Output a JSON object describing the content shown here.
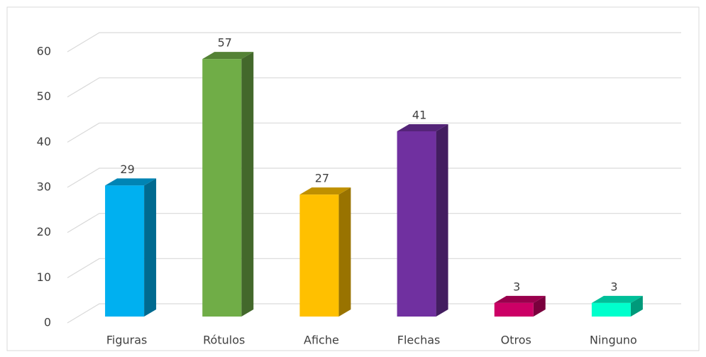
{
  "chart_data": {
    "type": "bar3d",
    "categories": [
      "Figuras",
      "Rótulos",
      "Afiche",
      "Flechas",
      "Otros",
      "Ninguno"
    ],
    "values": [
      29,
      57,
      27,
      41,
      3,
      3
    ],
    "colors": [
      "#00b0f0",
      "#70ad47",
      "#ffc000",
      "#7030a0",
      "#cc0066",
      "#00ffcc"
    ],
    "ylim": [
      0,
      60
    ],
    "yticks": [
      0,
      10,
      20,
      30,
      40,
      50,
      60
    ],
    "grid": true
  }
}
